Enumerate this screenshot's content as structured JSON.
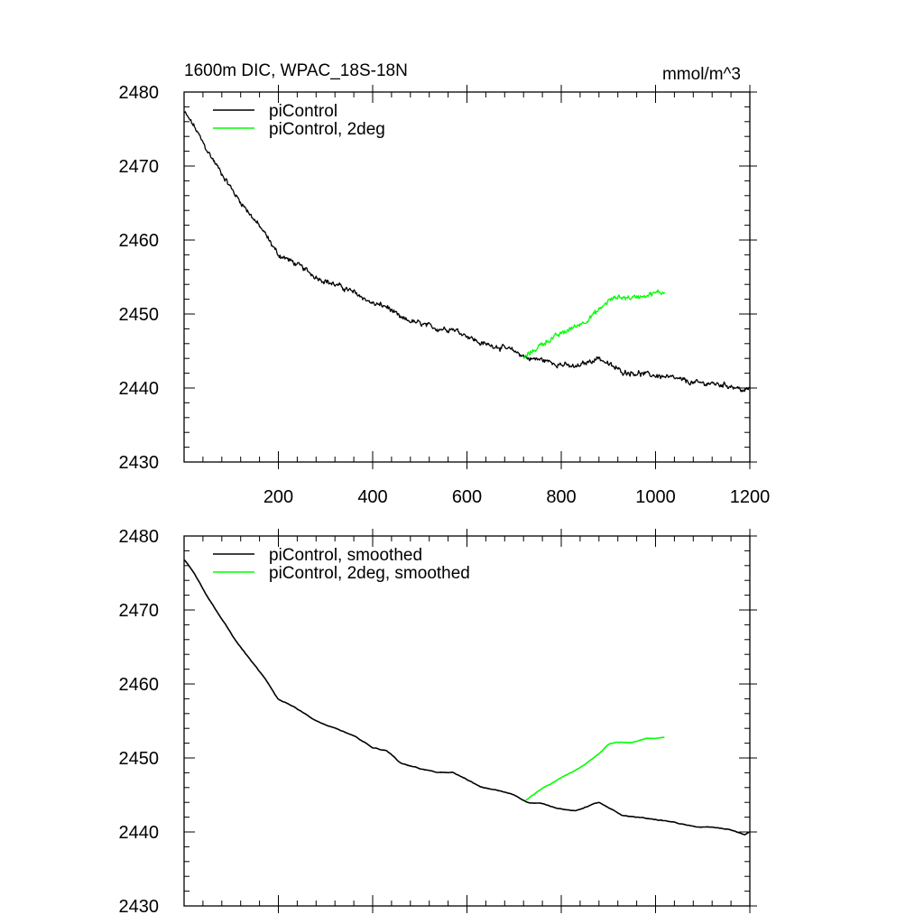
{
  "chart_data": [
    {
      "type": "line",
      "title": "1600m DIC, WPAC_18S-18N",
      "units": "mmol/m^3",
      "xlim": [
        0,
        1200
      ],
      "ylim": [
        2430,
        2480
      ],
      "x_ticks": [
        200,
        400,
        600,
        800,
        1000,
        1200
      ],
      "y_ticks": [
        2430,
        2440,
        2450,
        2460,
        2470,
        2480
      ],
      "x_tick_labels": [
        "200",
        "400",
        "600",
        "800",
        "1000",
        "1200"
      ],
      "y_tick_labels": [
        "2430",
        "2440",
        "2450",
        "2460",
        "2470",
        "2480"
      ],
      "legend_position": "top-left",
      "grid": false,
      "series": [
        {
          "name": "piControl",
          "color": "#000000",
          "noisy": true,
          "x": [
            1,
            20,
            50,
            80,
            110,
            140,
            170,
            200,
            220,
            250,
            280,
            310,
            340,
            370,
            400,
            430,
            460,
            500,
            540,
            570,
            600,
            630,
            660,
            700,
            730,
            760,
            790,
            830,
            860,
            880,
            900,
            930,
            960,
            1000,
            1040,
            1080,
            1120,
            1160,
            1190,
            1200
          ],
          "y": [
            2477.2,
            2475.5,
            2472.0,
            2469.0,
            2466.0,
            2463.5,
            2461.0,
            2458.0,
            2457.4,
            2456.3,
            2455.0,
            2454.2,
            2453.5,
            2452.6,
            2451.4,
            2451.0,
            2449.4,
            2448.7,
            2448.0,
            2448.0,
            2447.1,
            2446.0,
            2445.7,
            2445.0,
            2444.0,
            2443.8,
            2443.3,
            2442.8,
            2443.6,
            2444.1,
            2443.2,
            2442.2,
            2442.0,
            2441.7,
            2441.3,
            2440.7,
            2440.6,
            2440.3,
            2439.6,
            2440.0
          ]
        },
        {
          "name": "piControl, 2deg",
          "color": "#00ff00",
          "noisy": true,
          "x": [
            720,
            740,
            760,
            790,
            820,
            850,
            880,
            900,
            920,
            950,
            980,
            1000,
            1020
          ],
          "y": [
            2444.0,
            2445.0,
            2446.0,
            2447.0,
            2448.0,
            2449.0,
            2450.5,
            2451.8,
            2452.3,
            2452.2,
            2452.6,
            2452.8,
            2453.0
          ]
        }
      ]
    },
    {
      "type": "line",
      "title": "",
      "xlim": [
        0,
        1200
      ],
      "ylim": [
        2430,
        2480
      ],
      "x_ticks": [
        200,
        400,
        600,
        800,
        1000,
        1200
      ],
      "y_ticks": [
        2430,
        2440,
        2450,
        2460,
        2470,
        2480
      ],
      "y_tick_labels": [
        "2430",
        "2440",
        "2450",
        "2460",
        "2470",
        "2480"
      ],
      "legend_position": "top-left",
      "grid": false,
      "series": [
        {
          "name": "piControl, smoothed",
          "color": "#000000",
          "noisy": false,
          "x": [
            1,
            20,
            50,
            80,
            110,
            140,
            170,
            200,
            220,
            250,
            280,
            310,
            340,
            370,
            400,
            430,
            460,
            500,
            540,
            570,
            600,
            630,
            660,
            700,
            730,
            760,
            790,
            830,
            860,
            880,
            900,
            930,
            960,
            1000,
            1040,
            1080,
            1120,
            1160,
            1190,
            1200
          ],
          "y": [
            2476.8,
            2475.2,
            2471.8,
            2468.8,
            2465.8,
            2463.3,
            2460.8,
            2457.9,
            2457.4,
            2456.3,
            2455.0,
            2454.2,
            2453.5,
            2452.6,
            2451.4,
            2451.0,
            2449.3,
            2448.6,
            2448.0,
            2448.0,
            2447.1,
            2446.0,
            2445.7,
            2445.0,
            2444.0,
            2443.8,
            2443.3,
            2442.8,
            2443.6,
            2444.0,
            2443.2,
            2442.2,
            2442.0,
            2441.7,
            2441.3,
            2440.7,
            2440.6,
            2440.3,
            2439.6,
            2440.0
          ]
        },
        {
          "name": "piControl, 2deg, smoothed",
          "color": "#00ff00",
          "noisy": false,
          "x": [
            725,
            740,
            760,
            790,
            820,
            850,
            880,
            900,
            920,
            950,
            980,
            1000,
            1020
          ],
          "y": [
            2444.3,
            2445.0,
            2445.9,
            2446.9,
            2448.0,
            2449.0,
            2450.5,
            2451.8,
            2452.1,
            2452.1,
            2452.6,
            2452.7,
            2452.9
          ]
        }
      ]
    }
  ]
}
